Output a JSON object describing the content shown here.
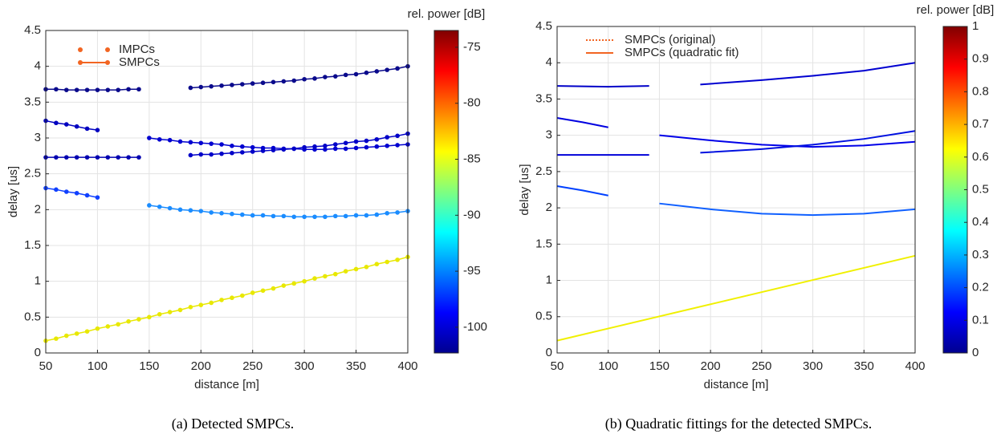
{
  "chart_data": [
    {
      "type": "line",
      "markers": true,
      "xlabel": "distance [m]",
      "ylabel": "delay [us]",
      "caption": "(a) Detected SMPCs.",
      "xlim": [
        50,
        400
      ],
      "xticks": [
        50,
        100,
        150,
        200,
        250,
        300,
        350,
        400
      ],
      "ylim": [
        0,
        4.5
      ],
      "yticks": [
        0,
        0.5,
        1,
        1.5,
        2,
        2.5,
        3,
        3.5,
        4,
        4.5
      ],
      "grid": true,
      "colorbar": {
        "label": "rel. power [dB]",
        "lim": [
          -102.3,
          -73.5
        ],
        "ticks": [
          -100,
          -95,
          -90,
          -85,
          -80,
          -75
        ]
      },
      "legend": [
        {
          "name": "IMPCs",
          "color": "#f26522",
          "style": "dots"
        },
        {
          "name": "SMPCs",
          "color": "#f26522",
          "style": "line-dots"
        }
      ],
      "tracks": [
        {
          "color": "#0a0a8c",
          "x": [
            50,
            60,
            70,
            80,
            90,
            100,
            110,
            120,
            130,
            140
          ],
          "values": [
            3.68,
            3.68,
            3.67,
            3.67,
            3.67,
            3.67,
            3.67,
            3.67,
            3.68,
            3.68
          ]
        },
        {
          "color": "#0a0a8c",
          "x": [
            190,
            200,
            210,
            220,
            230,
            240,
            250,
            260,
            270,
            280,
            290,
            300,
            310,
            320,
            330,
            340,
            350,
            360,
            370,
            380,
            390,
            400
          ],
          "values": [
            3.7,
            3.71,
            3.72,
            3.73,
            3.74,
            3.75,
            3.76,
            3.77,
            3.78,
            3.79,
            3.8,
            3.82,
            3.83,
            3.85,
            3.86,
            3.88,
            3.89,
            3.91,
            3.93,
            3.95,
            3.97,
            4.0
          ]
        },
        {
          "color": "#0000c0",
          "x": [
            50,
            60,
            70,
            80,
            90,
            100
          ],
          "values": [
            3.24,
            3.21,
            3.19,
            3.16,
            3.13,
            3.11
          ]
        },
        {
          "color": "#0000b0",
          "x": [
            50,
            60,
            70,
            80,
            90,
            100,
            110,
            120,
            130,
            140
          ],
          "values": [
            2.73,
            2.73,
            2.73,
            2.73,
            2.73,
            2.73,
            2.73,
            2.73,
            2.73,
            2.73
          ]
        },
        {
          "color": "#0000d0",
          "x": [
            150,
            160,
            170,
            180,
            190,
            200,
            210,
            220,
            230,
            240,
            250,
            260,
            270,
            280,
            290,
            300,
            310,
            320,
            330,
            340,
            350,
            360,
            370,
            380,
            390,
            400
          ],
          "values": [
            3.0,
            2.98,
            2.97,
            2.95,
            2.94,
            2.93,
            2.92,
            2.91,
            2.89,
            2.88,
            2.87,
            2.86,
            2.86,
            2.85,
            2.85,
            2.84,
            2.84,
            2.84,
            2.85,
            2.85,
            2.86,
            2.87,
            2.88,
            2.89,
            2.9,
            2.91
          ]
        },
        {
          "color": "#0000c8",
          "x": [
            190,
            200,
            210,
            220,
            230,
            240,
            250,
            260,
            270,
            280,
            290,
            300,
            310,
            320,
            330,
            340,
            350,
            360,
            370,
            380,
            390,
            400
          ],
          "values": [
            2.76,
            2.77,
            2.77,
            2.78,
            2.79,
            2.8,
            2.81,
            2.82,
            2.83,
            2.84,
            2.85,
            2.87,
            2.88,
            2.89,
            2.91,
            2.93,
            2.95,
            2.96,
            2.98,
            3.01,
            3.03,
            3.06
          ]
        },
        {
          "color": "#1040ff",
          "x": [
            50,
            60,
            70,
            80,
            90,
            100
          ],
          "values": [
            2.3,
            2.28,
            2.25,
            2.23,
            2.2,
            2.17
          ]
        },
        {
          "color": "#1a8cff",
          "x": [
            150,
            160,
            170,
            180,
            190,
            200,
            210,
            220,
            230,
            240,
            250,
            260,
            270,
            280,
            290,
            300,
            310,
            320,
            330,
            340,
            350,
            360,
            370,
            380,
            390,
            400
          ],
          "values": [
            2.06,
            2.04,
            2.02,
            2.0,
            1.99,
            1.98,
            1.96,
            1.95,
            1.94,
            1.93,
            1.92,
            1.92,
            1.91,
            1.91,
            1.9,
            1.9,
            1.9,
            1.9,
            1.91,
            1.91,
            1.92,
            1.92,
            1.93,
            1.95,
            1.96,
            1.98
          ]
        },
        {
          "color": "#e8e800",
          "x": [
            50,
            60,
            70,
            80,
            90,
            100,
            110,
            120,
            130,
            140,
            150,
            160,
            170,
            180,
            190,
            200,
            210,
            220,
            230,
            240,
            250,
            260,
            270,
            280,
            290,
            300,
            310,
            320,
            330,
            340,
            350,
            360,
            370,
            380,
            390,
            400
          ],
          "values": [
            0.17,
            0.2,
            0.24,
            0.27,
            0.3,
            0.34,
            0.37,
            0.4,
            0.44,
            0.47,
            0.5,
            0.54,
            0.57,
            0.6,
            0.64,
            0.67,
            0.7,
            0.74,
            0.77,
            0.8,
            0.84,
            0.87,
            0.9,
            0.94,
            0.97,
            1.0,
            1.04,
            1.07,
            1.1,
            1.14,
            1.17,
            1.2,
            1.24,
            1.27,
            1.3,
            1.34
          ]
        }
      ]
    },
    {
      "type": "line",
      "markers": false,
      "xlabel": "distance [m]",
      "ylabel": "delay [us]",
      "caption": "(b) Quadratic fittings for the detected SMPCs.",
      "xlim": [
        50,
        400
      ],
      "xticks": [
        50,
        100,
        150,
        200,
        250,
        300,
        350,
        400
      ],
      "ylim": [
        0,
        4.5
      ],
      "yticks": [
        0,
        0.5,
        1,
        1.5,
        2,
        2.5,
        3,
        3.5,
        4,
        4.5
      ],
      "grid": true,
      "colorbar": {
        "label": "rel. power [dB]",
        "lim": [
          0,
          1
        ],
        "ticks": [
          0,
          0.1,
          0.2,
          0.3,
          0.4,
          0.5,
          0.6,
          0.7,
          0.8,
          0.9,
          1
        ]
      },
      "legend": [
        {
          "name": "SMPCs (original)",
          "color": "#f26522",
          "style": "dotted"
        },
        {
          "name": "SMPCs (quadratic fit)",
          "color": "#f26522",
          "style": "line"
        }
      ],
      "tracks": [
        {
          "color": "#0000c8",
          "x": [
            50,
            100,
            140
          ],
          "values": [
            3.68,
            3.67,
            3.68
          ]
        },
        {
          "color": "#0000d0",
          "x": [
            190,
            250,
            300,
            350,
            400
          ],
          "values": [
            3.7,
            3.76,
            3.82,
            3.89,
            4.0
          ]
        },
        {
          "color": "#0000e0",
          "x": [
            50,
            75,
            100
          ],
          "values": [
            3.24,
            3.18,
            3.11
          ]
        },
        {
          "color": "#0000d8",
          "x": [
            50,
            100,
            140
          ],
          "values": [
            2.73,
            2.73,
            2.73
          ]
        },
        {
          "color": "#0000e8",
          "x": [
            150,
            200,
            250,
            300,
            350,
            400
          ],
          "values": [
            3.0,
            2.93,
            2.87,
            2.84,
            2.86,
            2.91
          ]
        },
        {
          "color": "#0010e0",
          "x": [
            190,
            250,
            300,
            350,
            400
          ],
          "values": [
            2.76,
            2.81,
            2.87,
            2.95,
            3.06
          ]
        },
        {
          "color": "#0040ff",
          "x": [
            50,
            75,
            100
          ],
          "values": [
            2.3,
            2.24,
            2.17
          ]
        },
        {
          "color": "#1060ff",
          "x": [
            150,
            200,
            250,
            300,
            350,
            400
          ],
          "values": [
            2.06,
            1.98,
            1.92,
            1.9,
            1.92,
            1.98
          ]
        },
        {
          "color": "#f0f000",
          "x": [
            50,
            400
          ],
          "values": [
            0.17,
            1.34
          ]
        }
      ]
    }
  ]
}
